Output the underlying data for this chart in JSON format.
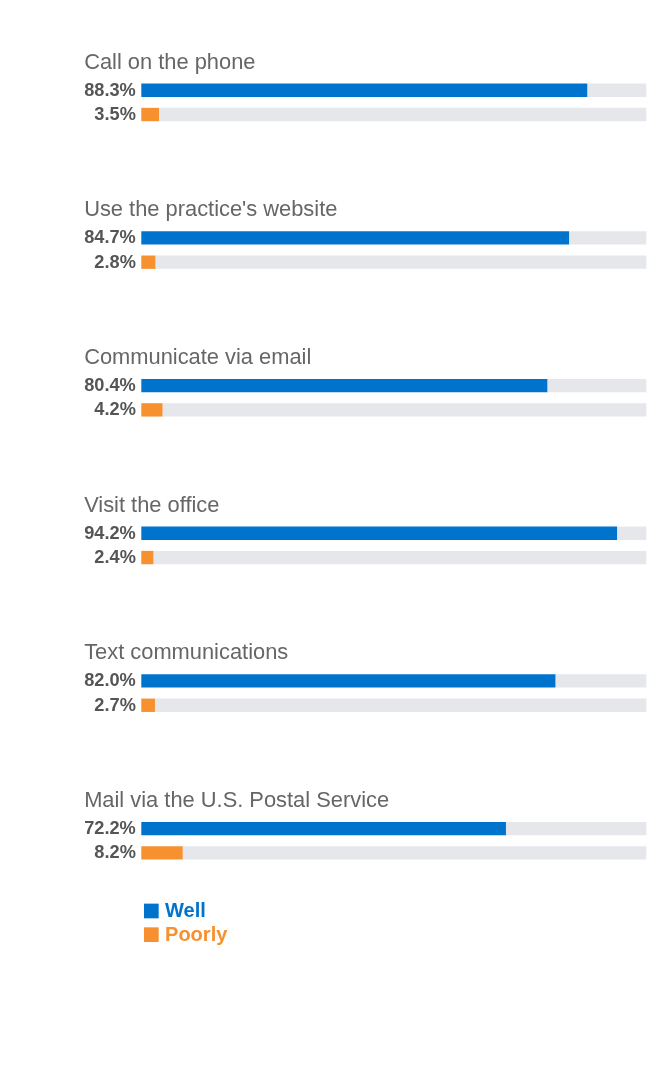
{
  "chart_data": {
    "type": "bar",
    "orientation": "horizontal",
    "categories": [
      "Call on the phone",
      "Use the practice's website",
      "Communicate via email",
      "Visit the office",
      "Text communications",
      "Mail via the U.S. Postal Service"
    ],
    "series": [
      {
        "name": "Well",
        "color": "#0074cc",
        "values": [
          88.3,
          84.7,
          80.4,
          94.2,
          82.0,
          72.2
        ],
        "value_labels": [
          "88.3%",
          "84.7%",
          "80.4%",
          "94.2%",
          "82.0%",
          "72.2%"
        ]
      },
      {
        "name": "Poorly",
        "color": "#f7902f",
        "values": [
          3.5,
          2.8,
          4.2,
          2.4,
          2.7,
          8.2
        ],
        "value_labels": [
          "3.5%",
          "2.8%",
          "4.2%",
          "2.4%",
          "2.7%",
          "8.2%"
        ]
      }
    ],
    "xlim": [
      0,
      100
    ],
    "tick_labels": false,
    "legend": "bottom left"
  }
}
